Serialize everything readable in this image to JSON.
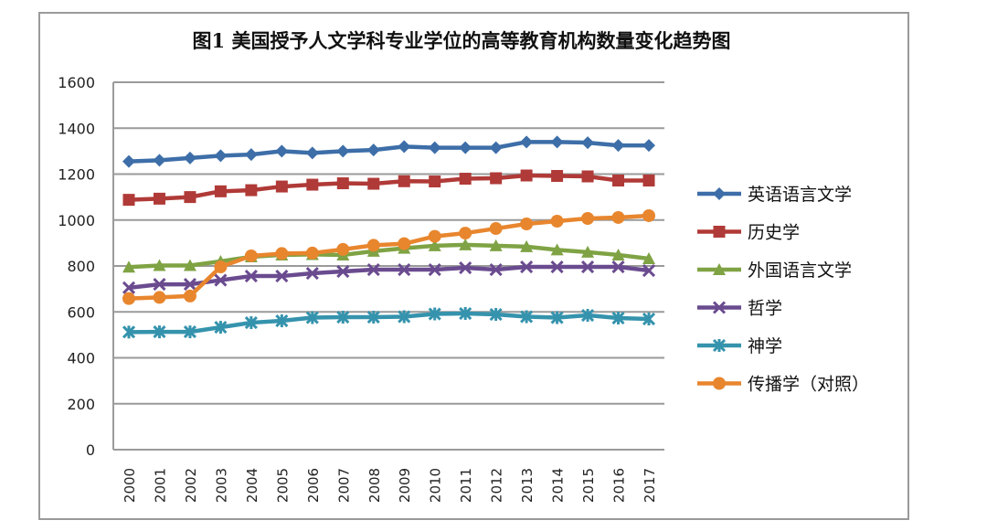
{
  "chart_data": {
    "type": "line",
    "title": "图1 美国授予人文学科专业学位的高等教育机构数量变化趋势图",
    "xlabel": "",
    "ylabel": "",
    "ylim": [
      0,
      1600
    ],
    "yticks": [
      0,
      200,
      400,
      600,
      800,
      1000,
      1200,
      1400,
      1600
    ],
    "grid": true,
    "legend_position": "right",
    "x": [
      "2000",
      "2001",
      "2002",
      "2003",
      "2004",
      "2005",
      "2006",
      "2007",
      "2008",
      "2009",
      "2010",
      "2011",
      "2012",
      "2013",
      "2014",
      "2015",
      "2016",
      "2017"
    ],
    "series": [
      {
        "name": "英语语言文学",
        "color": "#3d6ea8",
        "marker": "diamond",
        "values": [
          1255,
          1260,
          1270,
          1280,
          1285,
          1300,
          1292,
          1300,
          1305,
          1320,
          1315,
          1315,
          1315,
          1340,
          1340,
          1337,
          1325,
          1325
        ]
      },
      {
        "name": "历史学",
        "color": "#b03a37",
        "marker": "square",
        "values": [
          1088,
          1093,
          1100,
          1125,
          1130,
          1146,
          1154,
          1160,
          1158,
          1169,
          1168,
          1180,
          1182,
          1194,
          1192,
          1190,
          1172,
          1172
        ]
      },
      {
        "name": "外国语言文学",
        "color": "#7fa344",
        "marker": "triangle",
        "values": [
          795,
          802,
          802,
          820,
          840,
          848,
          850,
          848,
          864,
          877,
          888,
          892,
          888,
          884,
          870,
          860,
          848,
          832
        ]
      },
      {
        "name": "哲学",
        "color": "#6a4b8f",
        "marker": "x",
        "values": [
          705,
          720,
          720,
          738,
          756,
          756,
          768,
          776,
          784,
          784,
          784,
          792,
          784,
          796,
          796,
          796,
          796,
          780
        ]
      },
      {
        "name": "神学",
        "color": "#3593ad",
        "marker": "star",
        "values": [
          512,
          513,
          513,
          533,
          553,
          561,
          575,
          577,
          577,
          579,
          591,
          593,
          589,
          579,
          575,
          585,
          573,
          569
        ]
      },
      {
        "name": "传播学（对照）",
        "color": "#e8862e",
        "marker": "circle",
        "values": [
          658,
          663,
          669,
          796,
          844,
          854,
          856,
          872,
          890,
          897,
          929,
          943,
          963,
          983,
          995,
          1007,
          1011,
          1019
        ]
      }
    ]
  }
}
